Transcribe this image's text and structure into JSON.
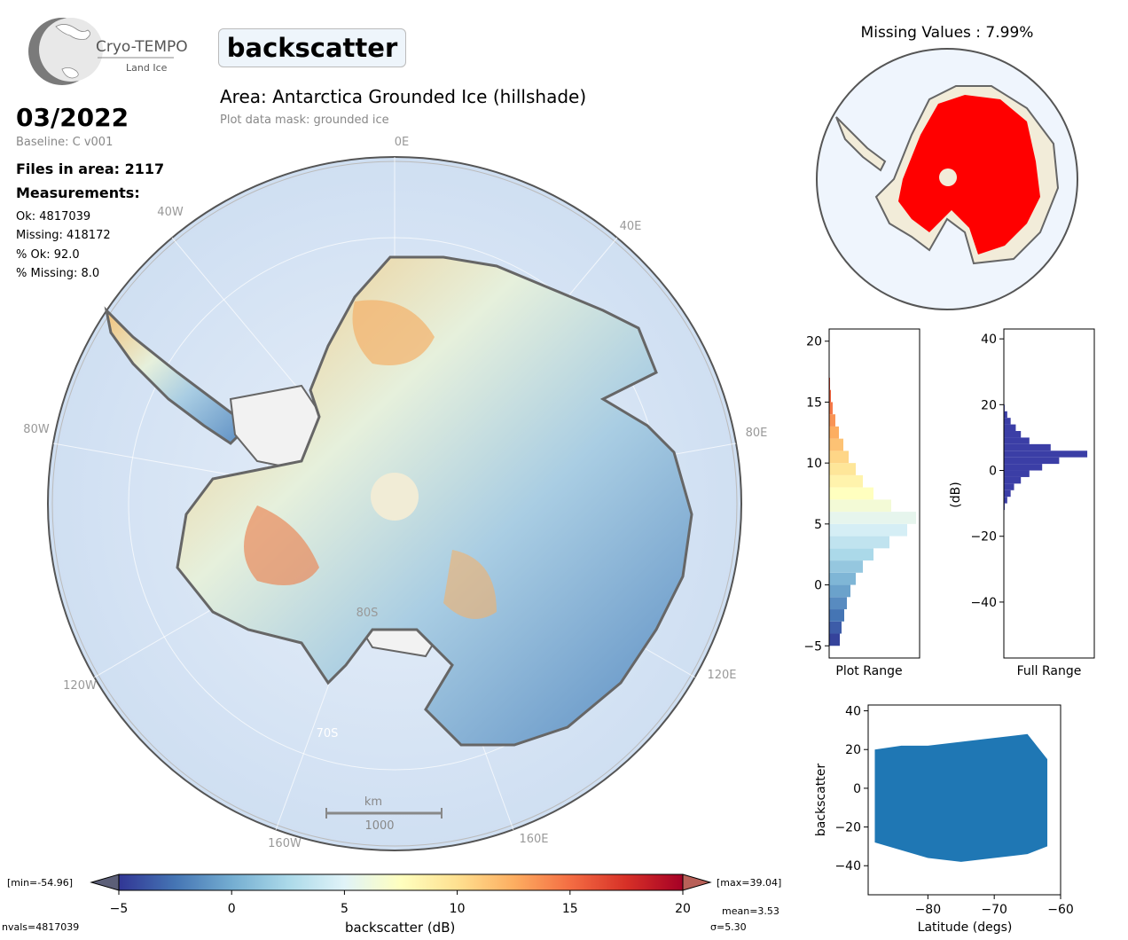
{
  "logo": {
    "name": "Cryo-TEMPO",
    "sub": "Land Ice"
  },
  "header": {
    "parameter": "backscatter",
    "area": "Area: Antarctica Grounded Ice (hillshade)",
    "mask": "Plot data mask: grounded ice",
    "date": "03/2022",
    "baseline": "Baseline: C v001",
    "files": "Files in area: 2117",
    "measurements_title": "Measurements:",
    "ok": "Ok: 4817039",
    "missing": "Missing: 418172",
    "pct_ok": "% Ok: 92.0",
    "pct_missing": "% Missing: 8.0"
  },
  "map": {
    "lon_labels": [
      "0E",
      "40E",
      "80E",
      "120E",
      "160E",
      "160W",
      "120W",
      "80W",
      "40W"
    ],
    "lat_labels": [
      "80S",
      "70S"
    ],
    "scalebar_unit": "km",
    "scalebar_value": "1000"
  },
  "missing_map": {
    "title": "Missing Values : 7.99%"
  },
  "colorbar": {
    "label": "backscatter (dB)",
    "ticks": [
      -5,
      0,
      5,
      10,
      15,
      20
    ],
    "min_label": "[min=-54.96]",
    "max_label": "[max=39.04]",
    "nvals": "nvals=4817039",
    "mean": "mean=3.53",
    "sigma": "σ=5.30",
    "colors": [
      "#313695",
      "#4575b4",
      "#74add1",
      "#abd9e9",
      "#e0f3f8",
      "#ffffbf",
      "#fee090",
      "#fdae61",
      "#f46d43",
      "#d73027",
      "#a50026"
    ]
  },
  "chart_data": [
    {
      "type": "bar",
      "orientation": "horizontal",
      "xlabel": "Plot Range",
      "ylim": [
        -6,
        21
      ],
      "yticks": [
        -5,
        0,
        5,
        10,
        15,
        20
      ],
      "bins": [
        -5,
        -4,
        -3,
        -2,
        -1,
        0,
        1,
        2,
        3,
        4,
        5,
        6,
        7,
        8,
        9,
        10,
        11,
        12,
        13,
        14,
        15,
        16
      ],
      "values": [
        0.12,
        0.14,
        0.17,
        0.2,
        0.24,
        0.3,
        0.38,
        0.5,
        0.68,
        0.88,
        0.98,
        0.7,
        0.5,
        0.38,
        0.3,
        0.22,
        0.16,
        0.11,
        0.07,
        0.04,
        0.02,
        0.01
      ]
    },
    {
      "type": "bar",
      "orientation": "horizontal",
      "xlabel": "Full Range",
      "ylabel": "(dB)",
      "ylim": [
        -57,
        43
      ],
      "yticks": [
        -40,
        -20,
        0,
        20,
        40
      ],
      "bins": [
        -12,
        -10,
        -8,
        -6,
        -4,
        -2,
        0,
        2,
        4,
        6,
        8,
        10,
        12,
        14,
        16,
        18
      ],
      "values": [
        0.01,
        0.04,
        0.08,
        0.12,
        0.2,
        0.3,
        0.45,
        0.65,
        0.98,
        0.55,
        0.3,
        0.2,
        0.14,
        0.08,
        0.04,
        0.01
      ]
    },
    {
      "type": "scatter",
      "xlabel": "Latitude (degs)",
      "ylabel": "backscatter",
      "xlim": [
        -89,
        -60
      ],
      "ylim": [
        -55,
        43
      ],
      "xticks": [
        -80,
        -70,
        -60
      ],
      "yticks": [
        -40,
        -20,
        0,
        20,
        40
      ],
      "color": "#1f77b4",
      "envelope": [
        {
          "x": -88,
          "low": -28,
          "high": 20
        },
        {
          "x": -84,
          "low": -32,
          "high": 22
        },
        {
          "x": -80,
          "low": -36,
          "high": 22
        },
        {
          "x": -75,
          "low": -38,
          "high": 24
        },
        {
          "x": -70,
          "low": -36,
          "high": 26
        },
        {
          "x": -65,
          "low": -34,
          "high": 28
        },
        {
          "x": -62,
          "low": -30,
          "high": 15
        }
      ]
    }
  ]
}
